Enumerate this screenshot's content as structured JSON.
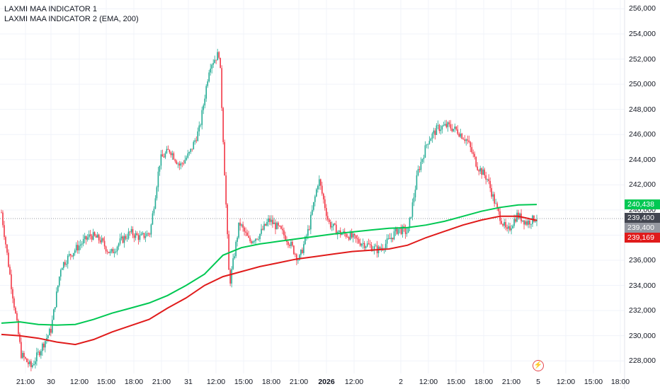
{
  "legend": {
    "indicator1": "LAXMI MAA INDICATOR 1",
    "indicator2": "LAXMI MAA INDICATOR 2 (EMA, 200)"
  },
  "colors": {
    "up": "#22ab94",
    "down": "#f23645",
    "green_line": "#00c853",
    "red_line": "#e01b1b",
    "tag_green": "#00c853",
    "tag_dark": "#434651",
    "tag_gray": "#9598a1",
    "tag_red": "#e01b1b"
  },
  "price_tags": [
    {
      "label": "240,438",
      "value": 240438,
      "color": "green"
    },
    {
      "label": "239,400",
      "value": 239400,
      "color": "dark"
    },
    {
      "label": "239,400",
      "value": 239400,
      "color": "gray"
    },
    {
      "label": "239,169",
      "value": 239169,
      "color": "red"
    }
  ],
  "icons": {
    "event": "lightning-icon"
  },
  "chart_data": {
    "type": "line",
    "y_axis": {
      "ticks": [
        "256,000",
        "254,000",
        "252,000",
        "250,000",
        "248,000",
        "246,000",
        "244,000",
        "242,000",
        "240,000",
        "238,000",
        "236,000",
        "234,000",
        "232,000",
        "230,000",
        "228,000"
      ],
      "ylim": [
        227000,
        256700
      ],
      "position": "right"
    },
    "x_axis": {
      "ticks": [
        "21:00",
        "30",
        "12:00",
        "15:00",
        "18:00",
        "21:00",
        "31",
        "12:00",
        "15:00",
        "18:00",
        "21:00",
        "2026",
        "12:00",
        "2",
        "12:00",
        "15:00",
        "18:00",
        "21:00",
        "5",
        "12:00",
        "15:00",
        "18:00"
      ],
      "bold": [
        "2026"
      ]
    },
    "last_price": 239400,
    "series": [
      {
        "name": "LAXMI MAA INDICATOR 1",
        "color": "green",
        "points": [
          [
            0,
            231000
          ],
          [
            2,
            231100
          ],
          [
            4,
            230900
          ],
          [
            6,
            230850
          ],
          [
            8,
            230900
          ],
          [
            10,
            231300
          ],
          [
            12,
            231800
          ],
          [
            14,
            232200
          ],
          [
            16,
            232600
          ],
          [
            18,
            233200
          ],
          [
            20,
            234000
          ],
          [
            22,
            234900
          ],
          [
            24,
            236400
          ],
          [
            26,
            237000
          ],
          [
            28,
            237300
          ],
          [
            30,
            237500
          ],
          [
            32,
            237700
          ],
          [
            34,
            237900
          ],
          [
            36,
            238100
          ],
          [
            38,
            238250
          ],
          [
            40,
            238400
          ],
          [
            42,
            238550
          ],
          [
            44,
            238600
          ],
          [
            46,
            238800
          ],
          [
            48,
            239100
          ],
          [
            50,
            239500
          ],
          [
            52,
            239900
          ],
          [
            54,
            240200
          ],
          [
            56,
            240400
          ],
          [
            58,
            240440
          ]
        ]
      },
      {
        "name": "LAXMI MAA INDICATOR 2 (EMA, 200)",
        "color": "red",
        "points": [
          [
            0,
            230100
          ],
          [
            2,
            230000
          ],
          [
            4,
            229800
          ],
          [
            6,
            229500
          ],
          [
            8,
            229300
          ],
          [
            10,
            229700
          ],
          [
            12,
            230300
          ],
          [
            14,
            230800
          ],
          [
            16,
            231300
          ],
          [
            18,
            232200
          ],
          [
            20,
            233000
          ],
          [
            22,
            234000
          ],
          [
            24,
            234700
          ],
          [
            26,
            235100
          ],
          [
            28,
            235500
          ],
          [
            30,
            235800
          ],
          [
            32,
            236100
          ],
          [
            34,
            236300
          ],
          [
            36,
            236500
          ],
          [
            38,
            236700
          ],
          [
            40,
            236800
          ],
          [
            42,
            236900
          ],
          [
            44,
            237200
          ],
          [
            46,
            237800
          ],
          [
            48,
            238300
          ],
          [
            50,
            238800
          ],
          [
            52,
            239200
          ],
          [
            54,
            239500
          ],
          [
            56,
            239500
          ],
          [
            58,
            239170
          ]
        ]
      },
      {
        "name": "price",
        "points": [
          [
            0,
            239800
          ],
          [
            1,
            234000
          ],
          [
            2,
            228500
          ],
          [
            3,
            227500
          ],
          [
            4,
            229000
          ],
          [
            5,
            230500
          ],
          [
            6,
            235500
          ],
          [
            7,
            236500
          ],
          [
            8,
            237300
          ],
          [
            9,
            238000
          ],
          [
            10,
            237600
          ],
          [
            11,
            236500
          ],
          [
            12,
            237500
          ],
          [
            13,
            238200
          ],
          [
            14,
            237800
          ],
          [
            15,
            238200
          ],
          [
            16,
            244000
          ],
          [
            17,
            244800
          ],
          [
            18,
            243500
          ],
          [
            19,
            244500
          ],
          [
            20,
            246500
          ],
          [
            21,
            251500
          ],
          [
            22,
            252500
          ],
          [
            23,
            234000
          ],
          [
            24,
            239000
          ],
          [
            25,
            237500
          ],
          [
            26,
            238000
          ],
          [
            27,
            239200
          ],
          [
            28,
            238500
          ],
          [
            29,
            237500
          ],
          [
            30,
            236000
          ],
          [
            31,
            238500
          ],
          [
            32,
            242500
          ],
          [
            33,
            239000
          ],
          [
            34,
            238200
          ],
          [
            35,
            238000
          ],
          [
            36,
            237500
          ],
          [
            37,
            237200
          ],
          [
            38,
            236800
          ],
          [
            39,
            237500
          ],
          [
            40,
            238500
          ],
          [
            41,
            238200
          ],
          [
            42,
            243000
          ],
          [
            43,
            245500
          ],
          [
            44,
            246500
          ],
          [
            45,
            246700
          ],
          [
            46,
            246300
          ],
          [
            47,
            245500
          ],
          [
            48,
            243500
          ],
          [
            49,
            242500
          ],
          [
            50,
            240000
          ],
          [
            51,
            238200
          ],
          [
            52,
            239600
          ],
          [
            53,
            239000
          ],
          [
            54,
            239400
          ]
        ]
      }
    ]
  }
}
